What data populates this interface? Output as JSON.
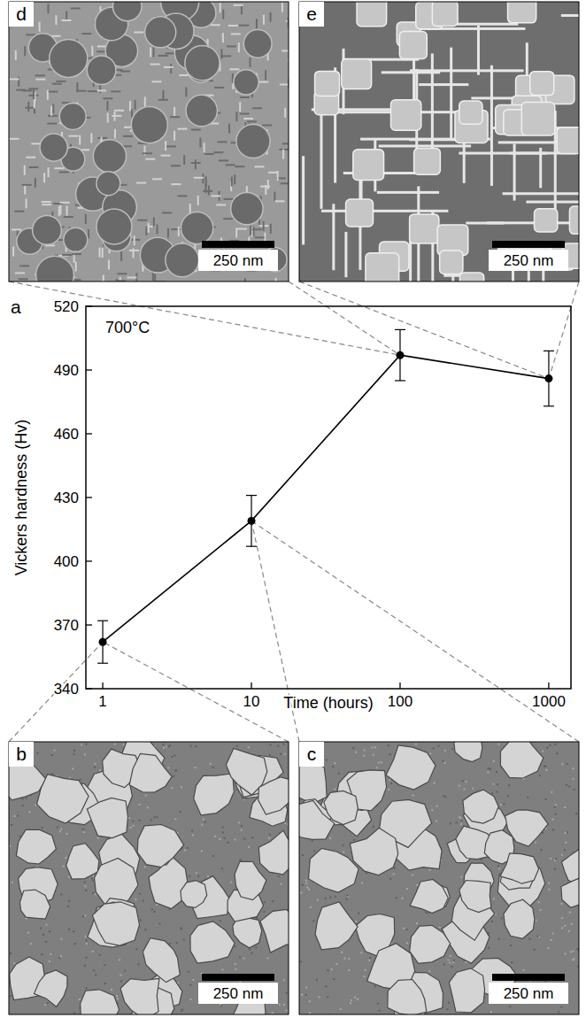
{
  "chart_data": {
    "type": "line",
    "panel_label": "a",
    "annotation": "700°C",
    "x_label": "Time (hours)",
    "y_label": "Vickers hardness (Hv)",
    "x": [
      1,
      10,
      100,
      1000
    ],
    "values": [
      362,
      419,
      497,
      486
    ],
    "errors": [
      10,
      12,
      12,
      13
    ],
    "color": "#000000",
    "marker": "circle",
    "line_style": "solid",
    "log": "x",
    "xlim": [
      0.77,
      1410
    ],
    "xticks": [
      1,
      10,
      100,
      1000
    ],
    "ylim": [
      340,
      520
    ],
    "yticks": [
      340,
      370,
      400,
      430,
      460,
      490,
      520
    ],
    "grid": false
  },
  "micrographs": [
    {
      "label": "d",
      "time": 100,
      "scale_bar": "250 nm"
    },
    {
      "label": "e",
      "time": 1000,
      "scale_bar": "250 nm"
    },
    {
      "label": "b",
      "time": 1,
      "scale_bar": "250 nm"
    },
    {
      "label": "c",
      "time": 10,
      "scale_bar": "250 nm"
    }
  ]
}
